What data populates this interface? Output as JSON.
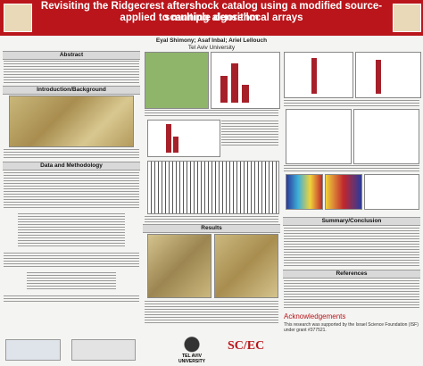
{
  "header": {
    "title_lines": [
      "Revisiting the Ridgecrest aftershock catalog using a modified source-scanning algorithm",
      "applied to multiple dense local arrays"
    ],
    "authors": "Eyal Shimony; Asaf Inbal; Ariel Lellouch",
    "affiliation": "Tel Aviv University"
  },
  "sections": {
    "abstract": "Abstract",
    "intro": "Introduction/Background",
    "methods": "Data and Methodology",
    "results": "Results",
    "summary": "Summary/Conclusion",
    "references": "References",
    "acknowledgements": "Acknowledgements"
  },
  "acknowledgements_text": "This research was supported by the Israel Science Foundation (ISF) under grant #377521.",
  "footer": {
    "tau": "TEL AVIV UNIVERSITY",
    "scec": "SC/EC"
  }
}
